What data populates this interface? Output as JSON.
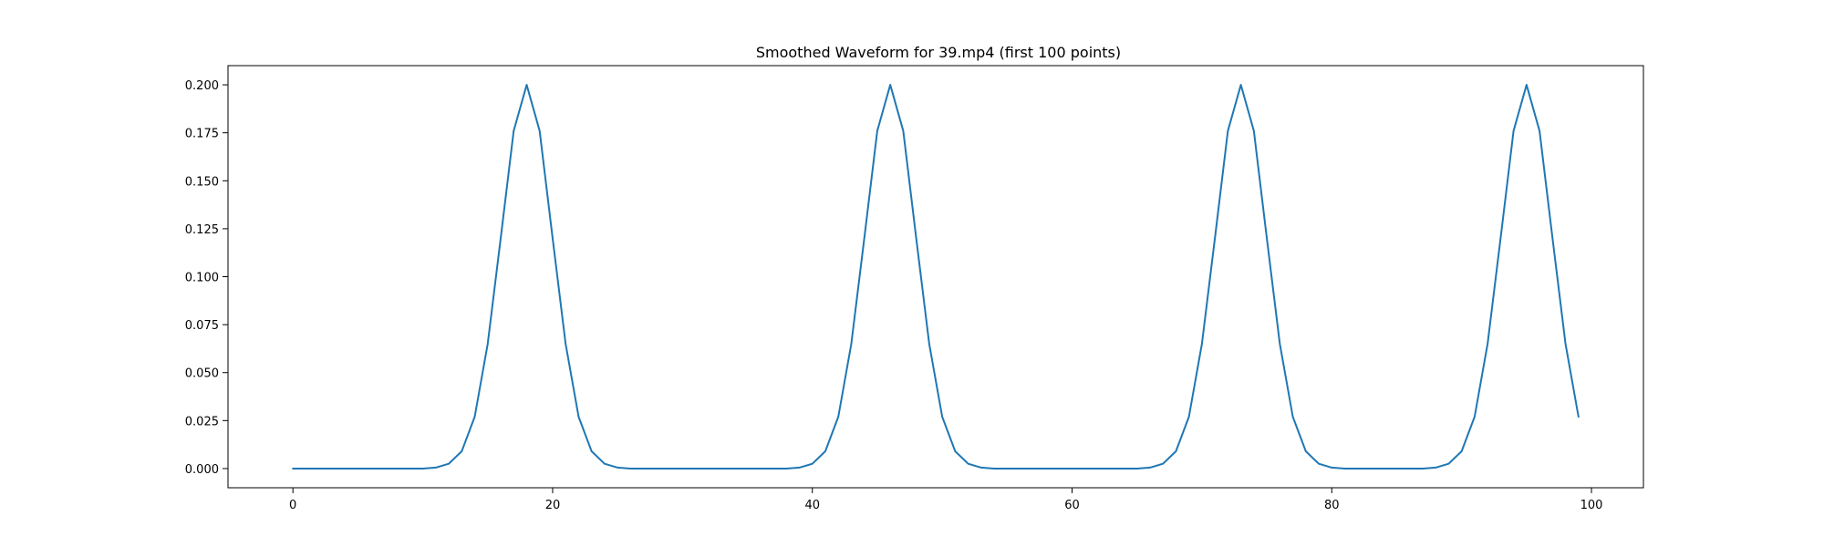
{
  "chart_data": {
    "type": "line",
    "title": "Smoothed Waveform for 39.mp4 (first 100 points)",
    "xlabel": "",
    "ylabel": "",
    "xlim": [
      -5,
      104
    ],
    "ylim": [
      -0.01,
      0.21
    ],
    "x_ticks": [
      0,
      20,
      40,
      60,
      80,
      100
    ],
    "y_ticks": [
      0.0,
      0.025,
      0.05,
      0.075,
      0.1,
      0.125,
      0.15,
      0.175,
      0.2
    ],
    "x_tick_labels": [
      "0",
      "20",
      "40",
      "60",
      "80",
      "100"
    ],
    "y_tick_labels": [
      "0.000",
      "0.025",
      "0.050",
      "0.075",
      "0.100",
      "0.125",
      "0.150",
      "0.175",
      "0.200"
    ],
    "grid": false,
    "series": [
      {
        "color": "#1f77b4",
        "x": [
          0,
          1,
          2,
          3,
          4,
          5,
          6,
          7,
          8,
          9,
          10,
          11,
          12,
          13,
          14,
          15,
          16,
          17,
          18,
          19,
          20,
          21,
          22,
          23,
          24,
          25,
          26,
          27,
          28,
          29,
          30,
          31,
          32,
          33,
          34,
          35,
          36,
          37,
          38,
          39,
          40,
          41,
          42,
          43,
          44,
          45,
          46,
          47,
          48,
          49,
          50,
          51,
          52,
          53,
          54,
          55,
          56,
          57,
          58,
          59,
          60,
          61,
          62,
          63,
          64,
          65,
          66,
          67,
          68,
          69,
          70,
          71,
          72,
          73,
          74,
          75,
          76,
          77,
          78,
          79,
          80,
          81,
          82,
          83,
          84,
          85,
          86,
          87,
          88,
          89,
          90,
          91,
          92,
          93,
          94,
          95,
          96,
          97,
          98,
          99
        ],
        "y": [
          0,
          0,
          0,
          0,
          0,
          0,
          0,
          0,
          0,
          0,
          0,
          0.0005,
          0.0025,
          0.009,
          0.027,
          0.065,
          0.12,
          0.176,
          0.2,
          0.176,
          0.12,
          0.065,
          0.027,
          0.009,
          0.0025,
          0.0005,
          0,
          0,
          0,
          0,
          0,
          0,
          0,
          0,
          0,
          0,
          0,
          0,
          0,
          0.0005,
          0.0025,
          0.009,
          0.027,
          0.065,
          0.12,
          0.176,
          0.2,
          0.176,
          0.12,
          0.065,
          0.027,
          0.009,
          0.0025,
          0.0005,
          0,
          0,
          0,
          0,
          0,
          0,
          0,
          0,
          0,
          0,
          0,
          0,
          0.0005,
          0.0025,
          0.009,
          0.027,
          0.065,
          0.12,
          0.176,
          0.2,
          0.176,
          0.12,
          0.065,
          0.027,
          0.009,
          0.0025,
          0.0005,
          0,
          0,
          0,
          0,
          0,
          0,
          0,
          0.0005,
          0.0025,
          0.009,
          0.027,
          0.065,
          0.12,
          0.176,
          0.2,
          0.176,
          0.12,
          0.065,
          0.027
        ]
      }
    ]
  }
}
